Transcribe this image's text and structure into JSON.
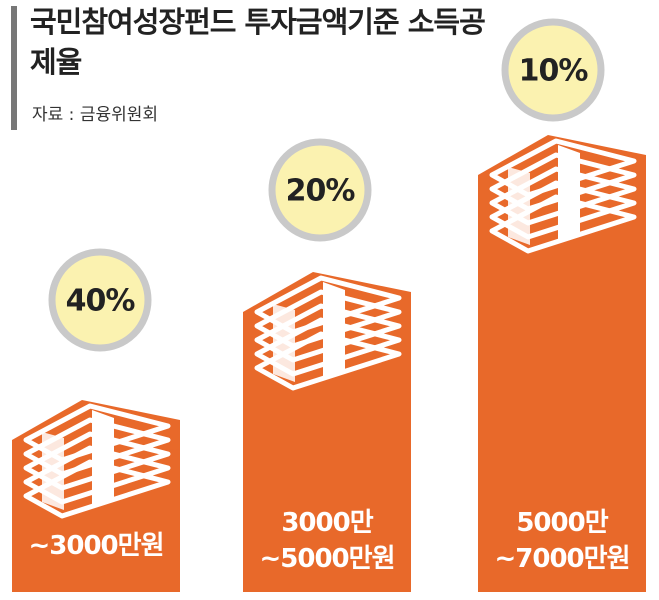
{
  "chart_data": {
    "type": "infographic",
    "title": "국민참여성장펀드 투자금액기준 소득공제율",
    "source": "자료 : 금융위원회",
    "categories": [
      "~3000만원",
      "3000만\n~5000만원",
      "5000만\n~7000만원"
    ],
    "values": [
      40,
      20,
      10
    ],
    "value_labels": [
      "40%",
      "20%",
      "10%"
    ],
    "color": "#e8692a"
  }
}
